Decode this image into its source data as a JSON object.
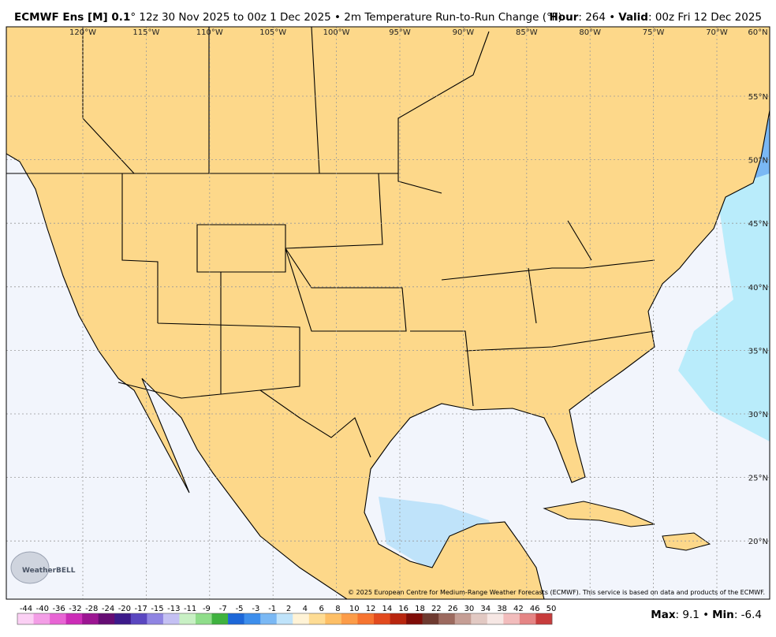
{
  "header": {
    "model": "ECMWF Ens [M] 0.1",
    "run": "° 12z 30 Nov 2025 to 00z 1 Dec 2025 • 2m Temperature Run-to-Run Change (°F)",
    "hour_label": "Hour",
    "hour_text": ": 264 •",
    "valid_label": "Valid",
    "valid_text": ": 00z Fri 12 Dec 2025"
  },
  "map": {
    "longitude_labels": [
      "120°W",
      "115°W",
      "110°W",
      "105°W",
      "100°W",
      "95°W",
      "90°W",
      "85°W",
      "80°W",
      "75°W",
      "70°W"
    ],
    "corner_label": "60°N",
    "latitude_labels": [
      "55°N",
      "50°N",
      "45°N",
      "40°N",
      "35°N",
      "30°N",
      "25°N",
      "20°N"
    ],
    "logo": "WeatherBELL",
    "copyright": "© 2025 European Centre for Medium-Range Weather Forecasts (ECMWF). This service is based on data and products of the ECMWF."
  },
  "colorbar": {
    "labels": [
      -44,
      -40,
      -36,
      -32,
      -28,
      -24,
      -20,
      -17,
      -15,
      -13,
      -11,
      -9,
      -7,
      -5,
      -3,
      -1,
      2,
      4,
      6,
      8,
      10,
      12,
      14,
      16,
      18,
      22,
      26,
      30,
      34,
      38,
      42,
      46,
      50
    ],
    "colors": [
      "#fbd0f4",
      "#f39ee6",
      "#e865d4",
      "#cc2db7",
      "#9c1592",
      "#650c73",
      "#3c1a8a",
      "#5a47c0",
      "#8f84e2",
      "#c4c0f3",
      "#c8f0c4",
      "#8fdd8a",
      "#3fb23f",
      "#1d67d8",
      "#3d8eec",
      "#7ab8f4",
      "#bfe3fa",
      "#fff3d6",
      "#fedc94",
      "#fdbf66",
      "#fc9c48",
      "#f67430",
      "#e24a1e",
      "#b8260f",
      "#7f0d08",
      "#6e3a30",
      "#9c6a5f",
      "#c59e95",
      "#e2c9c3",
      "#f6e7e4",
      "#f2bcbc",
      "#e58585",
      "#c73c3c"
    ]
  },
  "footer": {
    "max_label": "Max",
    "max_text": ": 9.1 •",
    "min_label": "Min",
    "min_text": ": -6.4"
  }
}
